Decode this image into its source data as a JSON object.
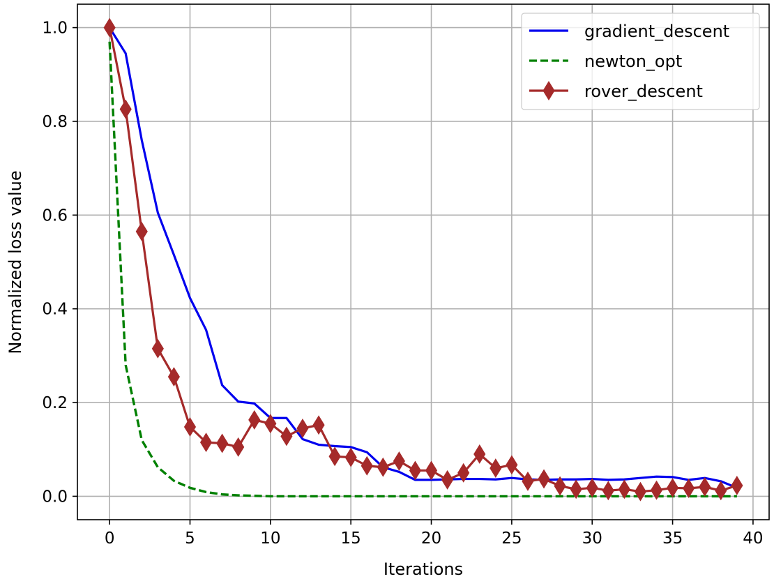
{
  "chart_data": {
    "type": "line",
    "title": "",
    "xlabel": "Iterations",
    "ylabel": "Normalized loss value",
    "xlim": [
      -2,
      41
    ],
    "ylim": [
      -0.05,
      1.05
    ],
    "xticks": [
      0,
      5,
      10,
      15,
      20,
      25,
      30,
      35,
      40
    ],
    "yticks": [
      0.0,
      0.2,
      0.4,
      0.6,
      0.8,
      1.0
    ],
    "xtick_labels": [
      "0",
      "5",
      "10",
      "15",
      "20",
      "25",
      "30",
      "35",
      "40"
    ],
    "ytick_labels": [
      "0.0",
      "0.2",
      "0.4",
      "0.6",
      "0.8",
      "1.0"
    ],
    "grid": true,
    "legend_position": "top-right",
    "x": [
      0,
      1,
      2,
      3,
      4,
      5,
      6,
      7,
      8,
      9,
      10,
      11,
      12,
      13,
      14,
      15,
      16,
      17,
      18,
      19,
      20,
      21,
      22,
      23,
      24,
      25,
      26,
      27,
      28,
      29,
      30,
      31,
      32,
      33,
      34,
      35,
      36,
      37,
      38,
      39
    ],
    "series": [
      {
        "name": "gradient_descent",
        "color": "#0000ee",
        "style": "solid",
        "marker": "none",
        "values": [
          1.0,
          0.945,
          0.76,
          0.605,
          0.515,
          0.423,
          0.355,
          0.237,
          0.202,
          0.198,
          0.167,
          0.167,
          0.122,
          0.11,
          0.107,
          0.105,
          0.094,
          0.062,
          0.052,
          0.035,
          0.035,
          0.036,
          0.037,
          0.037,
          0.036,
          0.039,
          0.036,
          0.035,
          0.036,
          0.036,
          0.037,
          0.035,
          0.036,
          0.039,
          0.042,
          0.041,
          0.035,
          0.039,
          0.032,
          0.018
        ]
      },
      {
        "name": "newton_opt",
        "color": "#008000",
        "style": "dashed",
        "marker": "none",
        "values": [
          0.97,
          0.28,
          0.12,
          0.062,
          0.033,
          0.018,
          0.009,
          0.004,
          0.002,
          0.001,
          0.0,
          0.0,
          0.0,
          0.0,
          0.0,
          0.0,
          0.0,
          0.0,
          0.0,
          0.0,
          0.0,
          0.0,
          0.0,
          0.0,
          0.0,
          0.0,
          0.0,
          0.0,
          0.0,
          0.0,
          0.0,
          0.0,
          0.0,
          0.0,
          0.0,
          0.0,
          0.0,
          0.0,
          0.0,
          0.0
        ]
      },
      {
        "name": "rover_descent",
        "color": "#a52a2a",
        "style": "solid",
        "marker": "diamond",
        "values": [
          1.0,
          0.826,
          0.565,
          0.315,
          0.255,
          0.148,
          0.115,
          0.113,
          0.105,
          0.163,
          0.155,
          0.128,
          0.145,
          0.152,
          0.085,
          0.083,
          0.065,
          0.062,
          0.075,
          0.055,
          0.055,
          0.035,
          0.05,
          0.09,
          0.06,
          0.067,
          0.032,
          0.037,
          0.022,
          0.015,
          0.018,
          0.012,
          0.015,
          0.01,
          0.013,
          0.018,
          0.017,
          0.02,
          0.012,
          0.023
        ]
      }
    ]
  }
}
